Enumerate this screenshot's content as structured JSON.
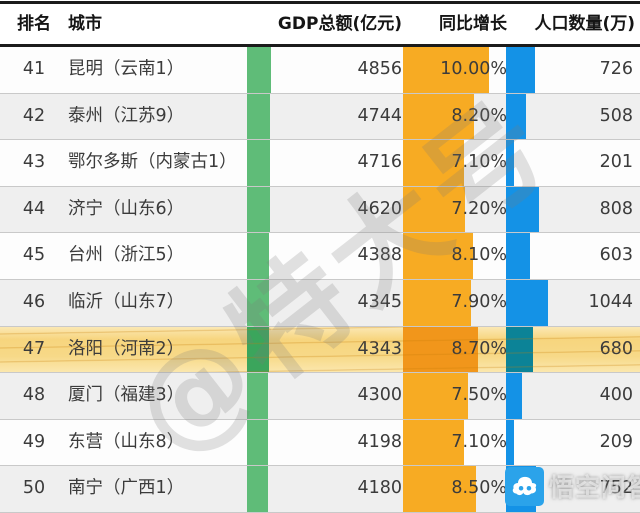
{
  "table": {
    "header": {
      "rank": "排名",
      "city": "城市",
      "gdp": "GDP总额(亿元)",
      "growth": "同比增长",
      "population": "人口数量(万)"
    },
    "rows": [
      {
        "rank": "41",
        "city": "昆明（云南1）",
        "gdp": 4856,
        "growth": "10.00%",
        "growth_pct": 10.0,
        "population": 726,
        "highlighted": false
      },
      {
        "rank": "42",
        "city": "泰州（江苏9）",
        "gdp": 4744,
        "growth": "8.20%",
        "growth_pct": 8.2,
        "population": 508,
        "highlighted": false
      },
      {
        "rank": "43",
        "city": "鄂尔多斯（内蒙古1）",
        "gdp": 4716,
        "growth": "7.10%",
        "growth_pct": 7.1,
        "population": 201,
        "highlighted": false
      },
      {
        "rank": "44",
        "city": "济宁（山东6）",
        "gdp": 4620,
        "growth": "7.20%",
        "growth_pct": 7.2,
        "population": 808,
        "highlighted": false
      },
      {
        "rank": "45",
        "city": "台州（浙江5）",
        "gdp": 4388,
        "growth": "8.10%",
        "growth_pct": 8.1,
        "population": 603,
        "highlighted": false
      },
      {
        "rank": "46",
        "city": "临沂（山东7）",
        "gdp": 4345,
        "growth": "7.90%",
        "growth_pct": 7.9,
        "population": 1044,
        "highlighted": false
      },
      {
        "rank": "47",
        "city": "洛阳（河南2）",
        "gdp": 4343,
        "growth": "8.70%",
        "growth_pct": 8.7,
        "population": 680,
        "highlighted": true
      },
      {
        "rank": "48",
        "city": "厦门（福建3）",
        "gdp": 4300,
        "growth": "7.50%",
        "growth_pct": 7.5,
        "population": 400,
        "highlighted": false
      },
      {
        "rank": "49",
        "city": "东营（山东8）",
        "gdp": 4198,
        "growth": "7.10%",
        "growth_pct": 7.1,
        "population": 209,
        "highlighted": false
      },
      {
        "rank": "50",
        "city": "南宁（广西1）",
        "gdp": 4180,
        "growth": "8.50%",
        "growth_pct": 8.5,
        "population": 752,
        "highlighted": false
      }
    ]
  },
  "watermarks": {
    "diagonal_text": "@特大号",
    "badge_text": "悟空问答",
    "badge_icon": "wukong-cloud-icon"
  },
  "colors": {
    "gdp_bar": "#5fbc78",
    "growth_bar": "#f7ab23",
    "population_bar": "#1492e6",
    "highlight_row": "#f7d57e",
    "highlight_gdp_bar": "#3ba55c",
    "highlight_growth_bar": "#f1961b",
    "highlight_population_bar": "#0c8397",
    "zebra_row": "#efefef",
    "badge_blue": "#2ba3ea"
  },
  "chart_data": {
    "type": "table",
    "columns": [
      "排名",
      "城市",
      "GDP总额(亿元)",
      "同比增长",
      "人口数量(万)"
    ],
    "rows": [
      [
        41,
        "昆明（云南1）",
        4856,
        "10.00%",
        726
      ],
      [
        42,
        "泰州（江苏9）",
        4744,
        "8.20%",
        508
      ],
      [
        43,
        "鄂尔多斯（内蒙古1）",
        4716,
        "7.10%",
        201
      ],
      [
        44,
        "济宁（山东6）",
        4620,
        "7.20%",
        808
      ],
      [
        45,
        "台州（浙江5）",
        4388,
        "8.10%",
        603
      ],
      [
        46,
        "临沂（山东7）",
        4345,
        "7.90%",
        1044
      ],
      [
        47,
        "洛阳（河南2）",
        4343,
        "8.70%",
        680
      ],
      [
        48,
        "厦门（福建3）",
        4300,
        "7.50%",
        400
      ],
      [
        49,
        "东营（山东8）",
        4198,
        "7.10%",
        209
      ],
      [
        50,
        "南宁（广西1）",
        4180,
        "8.50%",
        752
      ]
    ],
    "highlighted_rank": 47,
    "bar_columns": {
      "GDP总额(亿元)": "green in-cell data bar",
      "同比增长": "orange in-cell data bar",
      "人口数量(万)": "blue in-cell data bar"
    },
    "layout": {
      "zebra_striping": true,
      "grid": "horizontal row separators"
    }
  }
}
